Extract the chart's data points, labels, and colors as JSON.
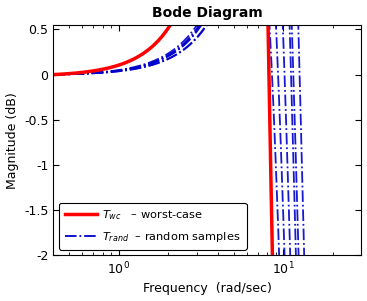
{
  "title": "Bode Diagram",
  "xlabel": "Frequency  (rad/sec)",
  "ylabel": "Magnitude (dB)",
  "xlim": [
    0.4,
    30
  ],
  "ylim": [
    -2.0,
    0.55
  ],
  "yticks": [
    0.5,
    0,
    -0.5,
    -1,
    -1.5,
    -2
  ],
  "background_color": "#ffffff",
  "wc_color": "#ff0000",
  "rand_color": "#0000cc",
  "wc_lw": 2.5,
  "rand_lw": 1.3,
  "wc_params": {
    "wn": 6.5,
    "zeta": 0.13,
    "wz": 80.0,
    "wp": 7.5
  },
  "rand_params": [
    {
      "wn": 9.0,
      "zeta": 0.3,
      "wz": 80.0,
      "wp": 11.0
    },
    {
      "wn": 10.0,
      "zeta": 0.28,
      "wz": 80.0,
      "wp": 12.0
    },
    {
      "wn": 8.5,
      "zeta": 0.33,
      "wz": 80.0,
      "wp": 10.5
    },
    {
      "wn": 9.5,
      "zeta": 0.26,
      "wz": 80.0,
      "wp": 11.5
    },
    {
      "wn": 10.5,
      "zeta": 0.24,
      "wz": 80.0,
      "wp": 13.0
    },
    {
      "wn": 8.0,
      "zeta": 0.35,
      "wz": 80.0,
      "wp": 10.0
    }
  ]
}
